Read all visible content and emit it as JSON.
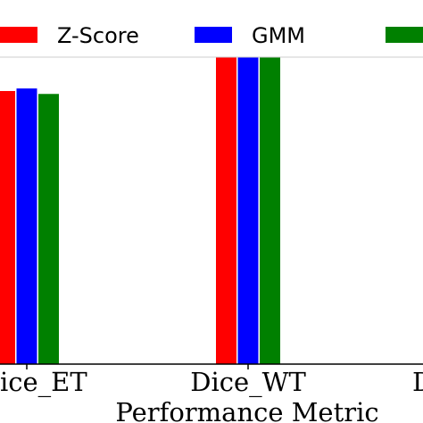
{
  "chart_data": {
    "type": "bar",
    "categories": [
      "Dice_ET",
      "Dice_WT",
      "D"
    ],
    "category_labels": [
      "ice_ET",
      "Dice_WT",
      "D"
    ],
    "series": [
      {
        "name": "Z-Score",
        "color": "#ff0000",
        "values": [
          0.75,
          0.87,
          null
        ]
      },
      {
        "name": "GMM",
        "color": "#0000ff",
        "values": [
          0.757,
          0.86,
          null
        ]
      },
      {
        "name": "",
        "color": "#008000",
        "values": [
          0.742,
          0.859,
          null
        ]
      }
    ],
    "xlabel": "Performance Metric",
    "ylim": [
      0,
      1
    ],
    "legend": "top, horizontal",
    "grid": false
  }
}
